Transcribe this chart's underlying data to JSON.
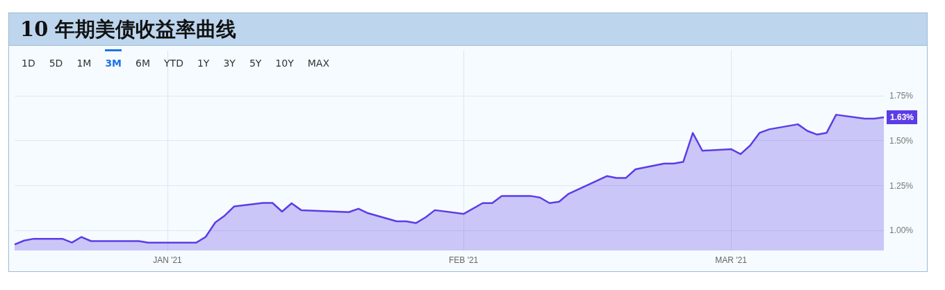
{
  "chart_data": {
    "type": "area",
    "title": "10 年期美债收益率曲线",
    "annotations": [
      "1D",
      "5D",
      "1M",
      "3M",
      "6M",
      "YTD",
      "1Y",
      "3Y",
      "5Y",
      "10Y",
      "MAX"
    ],
    "x": [
      "2020-12-16",
      "2020-12-17",
      "2020-12-18",
      "2020-12-21",
      "2020-12-22",
      "2020-12-23",
      "2020-12-24",
      "2020-12-29",
      "2020-12-30",
      "2021-01-04",
      "2021-01-05",
      "2021-01-06",
      "2021-01-07",
      "2021-01-08",
      "2021-01-11",
      "2021-01-12",
      "2021-01-13",
      "2021-01-14",
      "2021-01-15",
      "2021-01-20",
      "2021-01-21",
      "2021-01-22",
      "2021-01-25",
      "2021-01-26",
      "2021-01-27",
      "2021-01-28",
      "2021-01-29",
      "2021-02-01",
      "2021-02-03",
      "2021-02-04",
      "2021-02-05",
      "2021-02-08",
      "2021-02-09",
      "2021-02-10",
      "2021-02-11",
      "2021-02-12",
      "2021-02-16",
      "2021-02-17",
      "2021-02-18",
      "2021-02-19",
      "2021-02-22",
      "2021-02-23",
      "2021-02-24",
      "2021-02-25",
      "2021-02-26",
      "2021-03-01",
      "2021-03-02",
      "2021-03-03",
      "2021-03-04",
      "2021-03-05",
      "2021-03-08",
      "2021-03-09",
      "2021-03-10",
      "2021-03-11",
      "2021-03-12",
      "2021-03-15",
      "2021-03-16",
      "2021-03-17"
    ],
    "series": [
      {
        "color": "#5b3ce6",
        "values": [
          0.923,
          0.945,
          0.955,
          0.955,
          0.934,
          0.965,
          0.942,
          0.942,
          0.933,
          0.933,
          0.965,
          1.045,
          1.084,
          1.135,
          1.154,
          1.154,
          1.106,
          1.152,
          1.114,
          1.103,
          1.122,
          1.097,
          1.052,
          1.052,
          1.042,
          1.073,
          1.114,
          1.093,
          1.153,
          1.153,
          1.193,
          1.193,
          1.184,
          1.153,
          1.161,
          1.205,
          1.303,
          1.293,
          1.293,
          1.341,
          1.373,
          1.373,
          1.382,
          1.543,
          1.444,
          1.453,
          1.425,
          1.473,
          1.544,
          1.563,
          1.591,
          1.554,
          1.534,
          1.543,
          1.644,
          1.622,
          1.622,
          1.63
        ],
        "value_labels": [
          null,
          null,
          null,
          null,
          null,
          null,
          null,
          null,
          null,
          null,
          null,
          null,
          null,
          null,
          null,
          null,
          null,
          null,
          null,
          null,
          null,
          null,
          null,
          null,
          null,
          null,
          null,
          null,
          null,
          null,
          null,
          null,
          null,
          null,
          null,
          null,
          null,
          null,
          null,
          null,
          null,
          null,
          null,
          null,
          null,
          null,
          null,
          null,
          null,
          null,
          null,
          null,
          null,
          null,
          null,
          null,
          null,
          "1.63%"
        ]
      }
    ],
    "xlim": [
      "2020-12-16",
      "2021-03-17"
    ],
    "xticks": [
      {
        "value": "2021-01-01",
        "label": "JAN '21"
      },
      {
        "value": "2021-02-01",
        "label": "FEB '21"
      },
      {
        "value": "2021-03-01",
        "label": "MAR '21"
      }
    ],
    "ylim": [
      0.89,
      2.0
    ],
    "yticks": [
      {
        "value": 1,
        "label": "1.00%"
      },
      {
        "value": 1.25,
        "label": "1.25%"
      },
      {
        "value": 1.5,
        "label": "1.50%"
      },
      {
        "value": 1.75,
        "label": "1.75%"
      }
    ],
    "grid": true,
    "marker": "none"
  }
}
